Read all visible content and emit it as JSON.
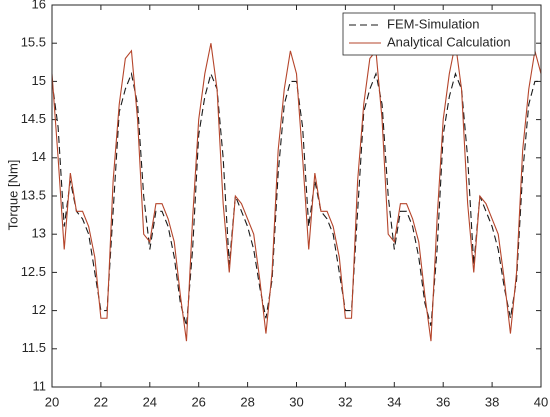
{
  "chart_data": {
    "type": "line",
    "ylabel": "Torque [Nm]",
    "x": [
      20,
      20.25,
      20.5,
      20.75,
      21,
      21.25,
      21.5,
      21.75,
      22,
      22.25,
      22.5,
      22.75,
      23,
      23.25,
      23.5,
      23.75,
      24,
      24.25,
      24.5,
      24.75,
      25,
      25.25,
      25.5,
      25.75,
      26,
      26.25,
      26.5,
      26.75,
      27,
      27.25,
      27.5,
      27.75,
      28,
      28.25,
      28.5,
      28.75,
      29,
      29.25,
      29.5,
      29.75,
      30,
      30.25,
      30.5,
      30.75,
      31,
      31.25,
      31.5,
      31.75,
      32,
      32.25,
      32.5,
      32.75,
      33,
      33.25,
      33.5,
      33.75,
      34,
      34.25,
      34.5,
      34.75,
      35,
      35.25,
      35.5,
      35.75,
      36,
      36.25,
      36.5,
      36.75,
      37,
      37.25,
      37.5,
      37.75,
      38,
      38.25,
      38.5,
      38.75,
      39,
      39.25,
      39.5,
      39.75,
      40
    ],
    "series": [
      {
        "name": "FEM-Simulation",
        "color": "#1a1a1a",
        "dash": true,
        "values": [
          15.0,
          14.4,
          13.1,
          13.7,
          13.3,
          13.2,
          13.0,
          12.5,
          12.0,
          12.0,
          13.3,
          14.6,
          14.9,
          15.1,
          14.7,
          13.5,
          12.8,
          13.3,
          13.3,
          13.1,
          12.7,
          12.1,
          11.8,
          12.8,
          14.3,
          14.8,
          15.1,
          14.9,
          14.0,
          12.6,
          13.5,
          13.3,
          13.1,
          12.8,
          12.3,
          11.9,
          12.4,
          13.8,
          14.7,
          15.0,
          15.0,
          14.4,
          13.1,
          13.7,
          13.3,
          13.2,
          13.0,
          12.5,
          12.0,
          12.0,
          13.3,
          14.6,
          14.9,
          15.1,
          14.7,
          13.5,
          12.8,
          13.3,
          13.3,
          13.1,
          12.7,
          12.1,
          11.8,
          12.8,
          14.3,
          14.8,
          15.1,
          14.9,
          14.0,
          12.6,
          13.5,
          13.3,
          13.1,
          12.8,
          12.3,
          11.9,
          12.4,
          13.8,
          14.7,
          15.0,
          15.0
        ]
      },
      {
        "name": "Analytical Calculation",
        "color": "#b5452b",
        "dash": false,
        "values": [
          15.1,
          14.0,
          12.8,
          13.8,
          13.3,
          13.3,
          13.1,
          12.7,
          11.9,
          11.9,
          13.7,
          14.7,
          15.3,
          15.4,
          14.5,
          13.0,
          12.9,
          13.4,
          13.4,
          13.2,
          12.9,
          12.2,
          11.6,
          13.2,
          14.5,
          15.1,
          15.5,
          14.9,
          13.4,
          12.5,
          13.5,
          13.4,
          13.2,
          13.0,
          12.4,
          11.7,
          12.5,
          14.1,
          14.9,
          15.4,
          15.1,
          14.0,
          12.8,
          13.8,
          13.3,
          13.3,
          13.1,
          12.7,
          11.9,
          11.9,
          13.7,
          14.7,
          15.3,
          15.4,
          14.5,
          13.0,
          12.9,
          13.4,
          13.4,
          13.2,
          12.9,
          12.2,
          11.6,
          13.2,
          14.5,
          15.1,
          15.5,
          14.9,
          13.4,
          12.5,
          13.5,
          13.4,
          13.2,
          13.0,
          12.4,
          11.7,
          12.5,
          14.1,
          14.9,
          15.4,
          15.1
        ]
      }
    ],
    "xlim": [
      20,
      40
    ],
    "xticks": [
      20,
      22,
      24,
      26,
      28,
      30,
      32,
      34,
      36,
      38,
      40
    ],
    "ylim": [
      11,
      16
    ],
    "yticks": [
      11,
      11.5,
      12,
      12.5,
      13,
      13.5,
      14,
      14.5,
      15,
      15.5,
      16
    ],
    "grid": false,
    "legend": "upper right"
  }
}
